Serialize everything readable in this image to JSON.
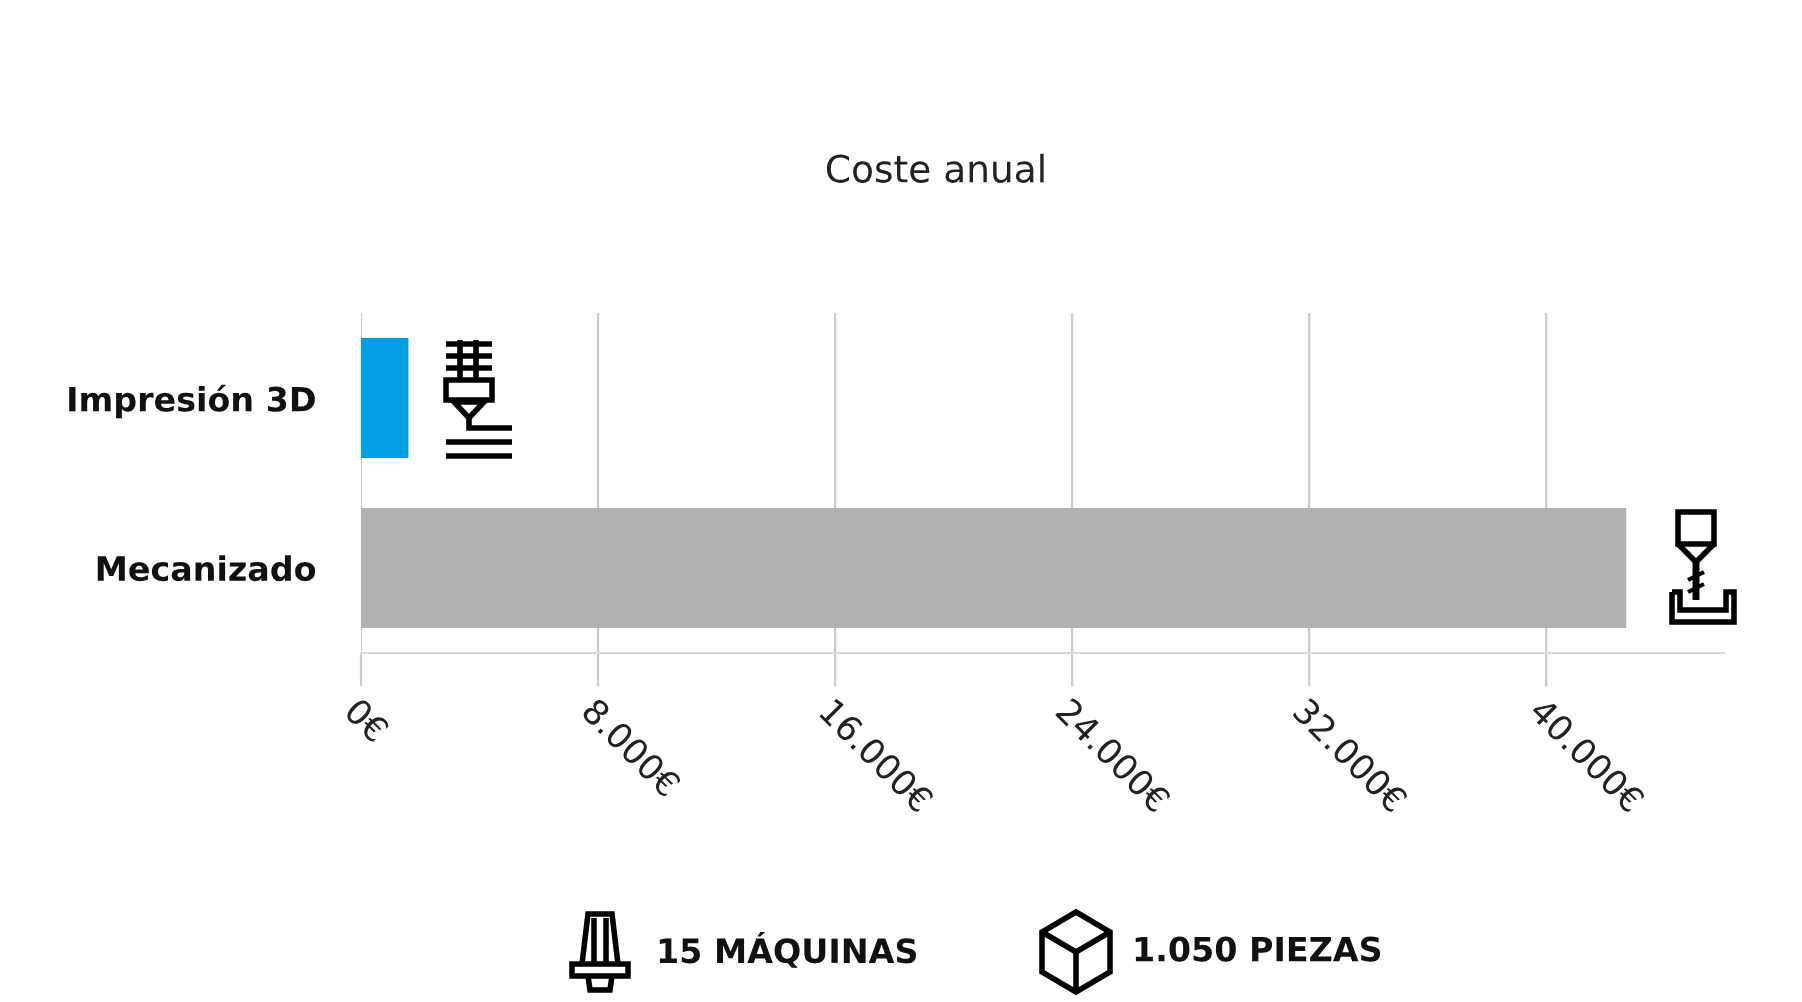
{
  "chart_data": {
    "type": "bar",
    "orientation": "horizontal",
    "title": "Coste anual",
    "categories": [
      "Impresión 3D",
      "Mecanizado"
    ],
    "values": [
      1600,
      42700
    ],
    "colors": [
      "#009fe3",
      "#b2b1b1"
    ],
    "xlim": [
      0,
      46000
    ],
    "xticks": [
      {
        "value": 0,
        "label": "0€"
      },
      {
        "value": 8000,
        "label": "8.000€"
      },
      {
        "value": 16000,
        "label": "16.000€"
      },
      {
        "value": 24000,
        "label": "24.000€"
      },
      {
        "value": 32000,
        "label": "32.000€"
      },
      {
        "value": 40000,
        "label": "40.000€"
      }
    ],
    "grid": "x",
    "annotations": [
      "15 MÁQUINAS",
      "1.050 PIEZAS"
    ]
  }
}
